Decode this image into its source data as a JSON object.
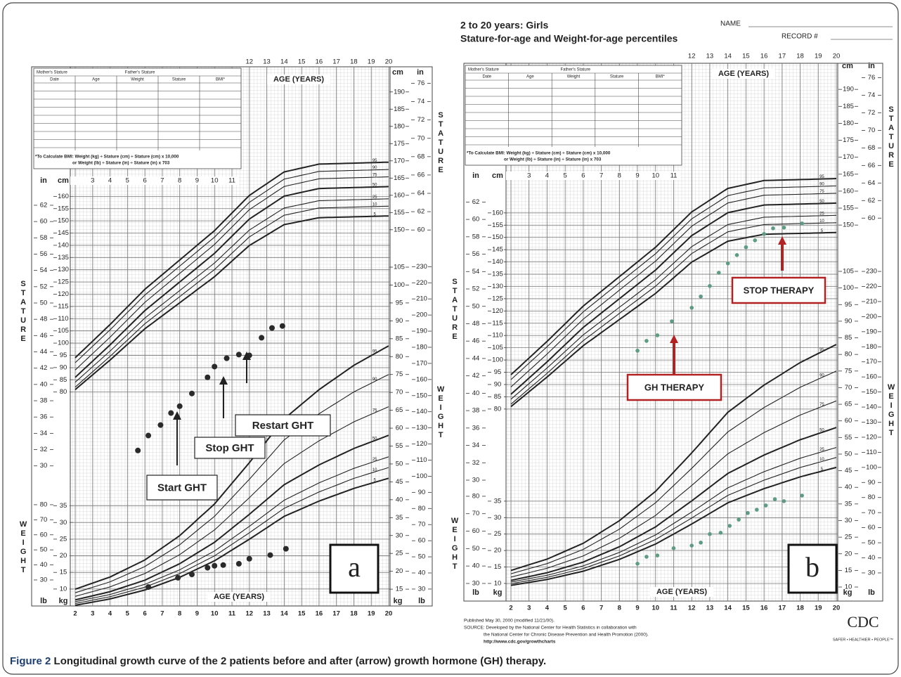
{
  "caption": {
    "label": "Figure 2",
    "text": "Longitudinal growth curve of the 2 patients before and after (arrow) growth hormone (GH) therapy."
  },
  "panels": [
    {
      "label": "a",
      "table": {
        "mother": "Mother's Stature",
        "father": "Father's Stature",
        "columns": [
          "Date",
          "Age",
          "Weight",
          "Stature",
          "BMI*"
        ],
        "bmi_note": [
          "*To Calculate BMI: Weight (kg) ÷ Stature (cm) ÷ Stature (cm) x 10,000",
          "or Weight (lb) ÷ Stature (in) ÷ Stature (in) x 703"
        ]
      },
      "age_label": "AGE (YEARS)",
      "stature_label": "STATURE",
      "weight_label": "WEIGHT",
      "units": {
        "in": "in",
        "cm": "cm",
        "kg": "kg",
        "lb": "lb"
      },
      "age_lim": [
        2,
        20
      ],
      "age_ticks": [
        2,
        3,
        4,
        5,
        6,
        7,
        8,
        9,
        10,
        11,
        12,
        13,
        14,
        15,
        16,
        17,
        18,
        19,
        20
      ],
      "age_top_ticks": [
        12,
        13,
        14,
        15,
        16,
        17,
        18,
        19,
        20
      ],
      "age_inner_ticks": [
        3,
        4,
        5,
        6,
        7,
        8,
        9,
        10,
        11
      ],
      "lims": {
        "cm_left": [
          -7.5,
          213
        ],
        "in_left": [
          12.8,
          79
        ],
        "kg_left": [
          4.9,
          167
        ],
        "lb_left": [
          12.7,
          371
        ],
        "cm_right": [
          40.8,
          197.3
        ],
        "in_right": [
          19,
          77.8
        ],
        "kg_right": [
          10.3,
          161
        ],
        "lb_right": [
          19.5,
          354
        ]
      },
      "ticks": {
        "cm_left": [
          80,
          85,
          90,
          95,
          100,
          105,
          110,
          115,
          120,
          125,
          130,
          135,
          140,
          145,
          150,
          155,
          160
        ],
        "in_left": [
          30,
          32,
          34,
          36,
          38,
          40,
          42,
          44,
          46,
          48,
          50,
          52,
          54,
          56,
          58,
          60,
          62
        ],
        "kg_left": [
          10,
          15,
          20,
          25,
          30,
          35
        ],
        "lb_left": [
          30,
          40,
          50,
          60,
          70,
          80
        ],
        "cm_right": [
          150,
          155,
          160,
          165,
          170,
          175,
          180,
          185,
          190
        ],
        "in_right": [
          60,
          62,
          64,
          66,
          68,
          70,
          72,
          74,
          76
        ],
        "kg_right": [
          15,
          20,
          25,
          30,
          35,
          40,
          45,
          50,
          55,
          60,
          65,
          70,
          75,
          80,
          85,
          90,
          95,
          100,
          105
        ],
        "lb_right": [
          30,
          40,
          50,
          60,
          70,
          80,
          90,
          100,
          110,
          120,
          130,
          140,
          150,
          160,
          170,
          180,
          190,
          200,
          210,
          220,
          230
        ]
      },
      "percentiles": [
        "95",
        "90",
        "75",
        "50",
        "25",
        "10",
        "5"
      ],
      "stature_points": {
        "age": [
          5.6,
          6.2,
          6.9,
          7.5,
          8.0,
          8.7,
          9.6,
          10.0,
          10.7,
          11.4,
          12.0,
          12.7,
          13.3,
          13.9
        ],
        "cm": [
          56.1,
          62.2,
          66.5,
          71.4,
          74.2,
          79.4,
          86.0,
          90.4,
          93.8,
          95.3,
          95.0,
          102.2,
          106.2,
          107.0
        ]
      },
      "weight_points": {
        "age": [
          6.2,
          7.9,
          8.7,
          9.6,
          10.0,
          10.5,
          11.4,
          12.0,
          13.2,
          14.1
        ],
        "kg": [
          10.6,
          13.4,
          14.4,
          16.4,
          17.0,
          17.2,
          17.6,
          19.1,
          20.2,
          22.1
        ]
      },
      "annotations": [
        "Start GHT",
        "Stop GHT",
        "Restart GHT"
      ]
    },
    {
      "label": "b",
      "header": {
        "title": "2 to 20 years: Girls",
        "subtitle": "Stature-for-age and Weight-for-age percentiles",
        "name": "NAME",
        "record": "RECORD #"
      },
      "table": {
        "mother": "Mother's Stature",
        "father": "Father's Stature",
        "columns": [
          "Date",
          "Age",
          "Weight",
          "Stature",
          "BMI*"
        ],
        "bmi_note": [
          "*To Calculate BMI: Weight (kg) ÷ Stature (cm) ÷ Stature (cm) x 10,000",
          "or Weight (lb) ÷ Stature (in) ÷ Stature (in) x 703"
        ]
      },
      "age_label": "AGE (YEARS)",
      "stature_label": "STATURE",
      "weight_label": "WEIGHT",
      "units": {
        "in": "in",
        "cm": "cm",
        "kg": "kg",
        "lb": "lb"
      },
      "age_lim": [
        2,
        20
      ],
      "age_ticks": [
        2,
        3,
        4,
        5,
        6,
        7,
        8,
        9,
        10,
        11,
        12,
        13,
        14,
        15,
        16,
        17,
        18,
        19,
        20
      ],
      "age_top_ticks": [
        12,
        13,
        14,
        15,
        16,
        17,
        18,
        19,
        20
      ],
      "age_inner_ticks": [
        3,
        4,
        5,
        6,
        7,
        8,
        9,
        10,
        11
      ],
      "lims": {
        "cm_left": [
          -7.5,
          213
        ],
        "in_left": [
          13.5,
          75.7
        ],
        "kg_left": [
          -2.2,
          162.1
        ],
        "lb_left": [
          7,
          317
        ],
        "cm_right": [
          32.5,
          191.9
        ],
        "in_right": [
          13.8,
          75.4
        ],
        "kg_right": [
          -1,
          161.7
        ],
        "lb_right": [
          -3.6,
          355
        ]
      },
      "ticks": {
        "cm_left": [
          80,
          85,
          90,
          95,
          100,
          105,
          110,
          115,
          120,
          125,
          130,
          135,
          140,
          145,
          150,
          155,
          160
        ],
        "in_left": [
          30,
          32,
          34,
          36,
          38,
          40,
          42,
          44,
          46,
          48,
          50,
          52,
          54,
          56,
          58,
          60,
          62
        ],
        "kg_left": [
          10,
          15,
          20,
          25,
          30,
          35
        ],
        "lb_left": [
          30,
          40,
          50,
          60,
          70,
          80
        ],
        "cm_right": [
          150,
          155,
          160,
          165,
          170,
          175,
          180,
          185,
          190
        ],
        "in_right": [
          60,
          62,
          64,
          66,
          68,
          70,
          72,
          74,
          76
        ],
        "kg_right": [
          10,
          15,
          20,
          25,
          30,
          35,
          40,
          45,
          50,
          55,
          60,
          65,
          70,
          75,
          80,
          85,
          90,
          95,
          100,
          105
        ],
        "lb_right": [
          30,
          40,
          50,
          60,
          70,
          80,
          90,
          100,
          110,
          120,
          130,
          140,
          150,
          160,
          170,
          180,
          190,
          200,
          210,
          220,
          230
        ]
      },
      "percentiles": [
        "95",
        "90",
        "75",
        "50",
        "25",
        "10",
        "5"
      ],
      "stature_points": {
        "age": [
          9.0,
          9.5,
          10.1,
          10.9,
          12.0,
          12.5,
          13.0,
          13.5,
          14.0,
          14.5,
          15.0,
          15.5,
          16.0,
          16.5,
          17.1,
          18.1
        ],
        "cm": [
          103.8,
          107.8,
          110.1,
          115.8,
          121.3,
          125.9,
          130.2,
          135.6,
          139.4,
          142.8,
          146.0,
          148.8,
          151.4,
          153.7,
          154.0,
          155.7
        ]
      },
      "weight_points": {
        "age": [
          9.0,
          9.5,
          10.1,
          11.0,
          12.0,
          12.5,
          13.0,
          13.6,
          14.1,
          14.6,
          15.1,
          15.6,
          16.1,
          16.6,
          17.1,
          18.1
        ],
        "kg": [
          16.0,
          18.1,
          18.5,
          20.7,
          21.5,
          22.4,
          25.0,
          25.4,
          27.5,
          29.4,
          31.4,
          32.4,
          33.7,
          35.6,
          35.0,
          36.7
        ]
      },
      "annotations": [
        "GH THERAPY",
        "STOP THERAPY"
      ],
      "footer": {
        "lines": [
          "Published May 30, 2000 (modified 11/21/00).",
          "SOURCE: Developed by the National Center for Health Statistics in collaboration with",
          "the National Center for Chronic Disease Prevention and Health Promotion (2000).",
          "http://www.cdc.gov/growthcharts"
        ],
        "logo": "CDC",
        "tagline": "SAFER • HEALTHIER • PEOPLE™"
      }
    }
  ]
}
